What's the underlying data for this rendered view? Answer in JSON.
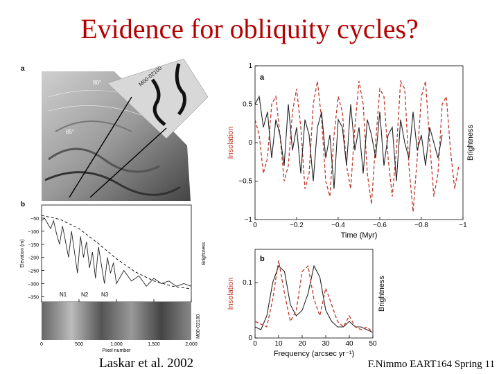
{
  "slide": {
    "title": "Evidence for obliquity cycles?",
    "caption_left": "Laskar et al. 2002",
    "caption_right": "F.Nimmo EART164 Spring 11"
  },
  "colors": {
    "title": "#b40000",
    "insolation": "#c0392b",
    "brightness": "#222222"
  },
  "figure_left": {
    "panel_a_label": "a",
    "panel_b_label": "b",
    "image_labels": [
      "M00-02100",
      "80°",
      "85°"
    ],
    "strip_label": "M00-02100",
    "annotations": [
      "N1",
      "N2",
      "N3"
    ]
  },
  "chart_data": [
    {
      "type": "line",
      "panel": "b (left)",
      "xlabel": "Pixel number",
      "ylabel": "Elevation (m)",
      "y2label": "Brightness",
      "xlim": [
        0,
        2000
      ],
      "ylim": [
        -370,
        0
      ],
      "xticks": [
        "0",
        "500",
        "1,000",
        "1,500",
        "2,000"
      ],
      "yticks": [
        "−50",
        "−100",
        "−150",
        "−200",
        "−250",
        "−300",
        "−350"
      ],
      "series": [
        {
          "values_x": [
            0,
            40,
            80,
            120,
            160,
            200,
            240,
            280,
            320,
            360,
            400,
            440,
            480,
            520,
            560,
            600,
            640,
            680,
            720,
            760,
            800,
            840,
            880,
            920,
            960,
            1000,
            1100,
            1200,
            1300,
            1400,
            1500,
            1600,
            1700,
            1800,
            1900,
            2000
          ],
          "values_y": [
            -60,
            -50,
            -70,
            -90,
            -60,
            -110,
            -150,
            -80,
            -140,
            -200,
            -100,
            -180,
            -260,
            -120,
            -200,
            -140,
            -240,
            -180,
            -280,
            -160,
            -230,
            -300,
            -200,
            -260,
            -220,
            -300,
            -250,
            -290,
            -270,
            -310,
            -280,
            -300,
            -290,
            -310,
            -300,
            -310
          ]
        },
        {
          "values_x": [
            0,
            250,
            500,
            750,
            1000,
            1250,
            1500,
            1750,
            2000
          ],
          "values_y": [
            -40,
            -55,
            -90,
            -145,
            -205,
            -255,
            -290,
            -310,
            -320
          ]
        }
      ]
    },
    {
      "type": "line",
      "panel": "a (right)",
      "xlabel": "Time (Myr)",
      "ylabel": "Insolation",
      "y2label": "Brightness",
      "xlim": [
        0,
        -1
      ],
      "ylim": [
        -1,
        1
      ],
      "xticks": [
        "0",
        "−0.2",
        "−0.4",
        "−0.6",
        "−0.8",
        "−1"
      ],
      "yticks": [
        "1",
        "0.5",
        "0",
        "−0.5",
        "−1"
      ],
      "series": [
        {
          "values_x": [
            0,
            -0.02,
            -0.04,
            -0.06,
            -0.08,
            -0.1,
            -0.12,
            -0.14,
            -0.16,
            -0.18,
            -0.2,
            -0.22,
            -0.24,
            -0.26,
            -0.28,
            -0.3,
            -0.32,
            -0.34,
            -0.36,
            -0.38,
            -0.4,
            -0.42,
            -0.44,
            -0.46,
            -0.48,
            -0.5,
            -0.52,
            -0.54,
            -0.56,
            -0.58,
            -0.6,
            -0.62,
            -0.64,
            -0.66,
            -0.68,
            -0.7,
            -0.72,
            -0.74,
            -0.76,
            -0.78,
            -0.8,
            -0.82,
            -0.84,
            -0.86,
            -0.88,
            -0.9,
            -0.92,
            -0.94,
            -0.96,
            -0.98
          ],
          "values_y": [
            0.3,
            0.1,
            -0.4,
            -0.2,
            0.5,
            0.6,
            0.1,
            -0.5,
            -0.3,
            0.4,
            0.7,
            0.2,
            -0.6,
            -0.4,
            0.5,
            0.8,
            0.3,
            -0.5,
            -0.7,
            0.1,
            0.6,
            0.4,
            -0.3,
            -0.6,
            0.2,
            0.8,
            0.5,
            -0.4,
            -0.8,
            0.0,
            0.7,
            0.6,
            -0.2,
            -0.7,
            -0.1,
            0.8,
            0.7,
            -0.3,
            -0.9,
            -0.2,
            0.6,
            0.8,
            0.0,
            -0.7,
            -0.4,
            0.5,
            0.6,
            -0.1,
            -0.6,
            -0.3
          ]
        },
        {
          "values_x": [
            0,
            -0.02,
            -0.04,
            -0.06,
            -0.08,
            -0.1,
            -0.12,
            -0.14,
            -0.16,
            -0.18,
            -0.2,
            -0.22,
            -0.24,
            -0.26,
            -0.28,
            -0.3,
            -0.32,
            -0.34,
            -0.36,
            -0.38,
            -0.4,
            -0.42,
            -0.44,
            -0.46,
            -0.48,
            -0.5,
            -0.52,
            -0.54,
            -0.56,
            -0.58,
            -0.6,
            -0.62,
            -0.64,
            -0.66,
            -0.68,
            -0.7,
            -0.72,
            -0.74,
            -0.76,
            -0.78,
            -0.8,
            -0.82,
            -0.84,
            -0.86,
            -0.88,
            -0.9
          ],
          "values_y": [
            0.5,
            0.6,
            0.2,
            0.4,
            -0.2,
            0.3,
            0.1,
            -0.3,
            0.5,
            -0.1,
            0.2,
            -0.4,
            0.3,
            0.1,
            -0.5,
            0.2,
            0.4,
            -0.2,
            0.1,
            -0.6,
            0.3,
            0.2,
            -0.3,
            0.5,
            -0.1,
            0.2,
            -0.4,
            0.3,
            0.1,
            -0.2,
            0.4,
            -0.3,
            0.1,
            0.2,
            -0.5,
            0.3,
            0.0,
            -0.2,
            0.4,
            -0.1,
            0.1,
            -0.3,
            0.2,
            0.0,
            -0.2,
            0.1
          ]
        }
      ]
    },
    {
      "type": "line",
      "panel": "b (right)",
      "xlabel": "Frequency (arcsec yr⁻¹)",
      "ylabel": "Insolation",
      "y2label": "Brightness",
      "xlim": [
        0,
        50
      ],
      "ylim": [
        0,
        0.16
      ],
      "xticks": [
        "0",
        "10",
        "20",
        "30",
        "40",
        "50"
      ],
      "yticks": [
        "0.1",
        "0"
      ],
      "series": [
        {
          "values_x": [
            0,
            2.5,
            5,
            7.5,
            10,
            12.5,
            15,
            17.5,
            20,
            22.5,
            25,
            27.5,
            30,
            32.5,
            35,
            37.5,
            40,
            42.5,
            45,
            47.5,
            50
          ],
          "values_y": [
            0.02,
            0.015,
            0.04,
            0.1,
            0.13,
            0.12,
            0.06,
            0.04,
            0.05,
            0.08,
            0.13,
            0.11,
            0.05,
            0.03,
            0.02,
            0.02,
            0.03,
            0.02,
            0.02,
            0.015,
            0.01
          ]
        },
        {
          "values_x": [
            0,
            2.5,
            5,
            7.5,
            10,
            12.5,
            15,
            17.5,
            20,
            22.5,
            25,
            27.5,
            30,
            32.5,
            35,
            37.5,
            40,
            42.5,
            45,
            47.5,
            50
          ],
          "values_y": [
            0.03,
            0.025,
            0.02,
            0.07,
            0.14,
            0.08,
            0.03,
            0.05,
            0.12,
            0.13,
            0.07,
            0.04,
            0.09,
            0.06,
            0.03,
            0.02,
            0.04,
            0.02,
            0.015,
            0.02,
            0.01
          ]
        }
      ]
    }
  ]
}
